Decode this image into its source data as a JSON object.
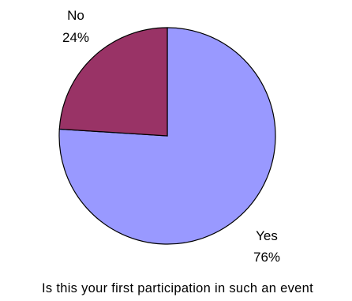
{
  "chart_data": {
    "type": "pie",
    "title": "Is this your first participation in such an event",
    "slices": [
      {
        "label": "Yes",
        "value": 76,
        "value_label": "76%",
        "color": "#9999ff"
      },
      {
        "label": "No",
        "value": 24,
        "value_label": "24%",
        "color": "#993366"
      }
    ],
    "border_color": "#000000",
    "legend": "none"
  }
}
